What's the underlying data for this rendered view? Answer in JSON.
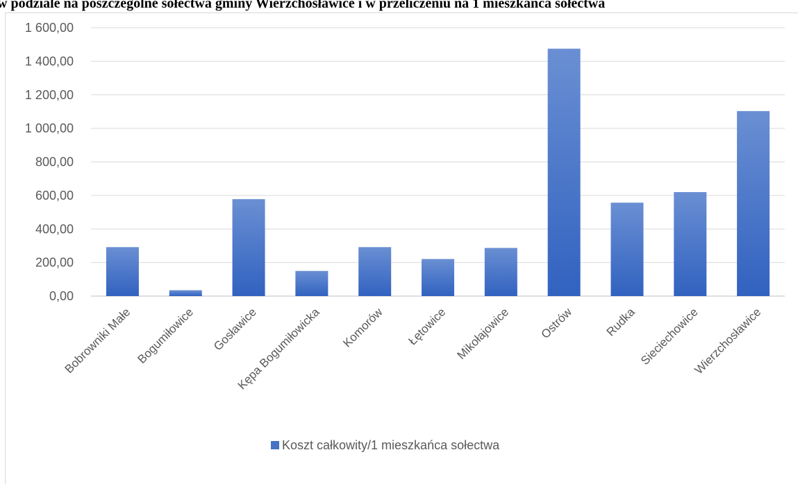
{
  "title": "w podziale na poszczególne sołectwa gminy Wierzchosławice i w przeliczeniu na 1 mieszkańca sołectwa",
  "chart_data": {
    "type": "bar",
    "categories": [
      "Bobrowniki Małe",
      "Bogumiłowice",
      "Gosławice",
      "Kępa Bogumiłowicka",
      "Komorów",
      "Łętowice",
      "Mikołajowice",
      "Ostrów",
      "Rudka",
      "Sieciechowice",
      "Wierzchosławice"
    ],
    "series": [
      {
        "name": "Koszt całkowity/1 mieszkańca sołectwa",
        "values": [
          292,
          35,
          578,
          150,
          292,
          221,
          287,
          1475,
          557,
          620,
          1103
        ],
        "color": "#4472c4"
      }
    ],
    "y_ticks": [
      "0,00",
      "200,00",
      "400,00",
      "600,00",
      "800,00",
      "1 000,00",
      "1 200,00",
      "1 400,00",
      "1 600,00"
    ],
    "ylim": [
      0,
      1600
    ],
    "grid": true,
    "legend_position": "bottom"
  }
}
